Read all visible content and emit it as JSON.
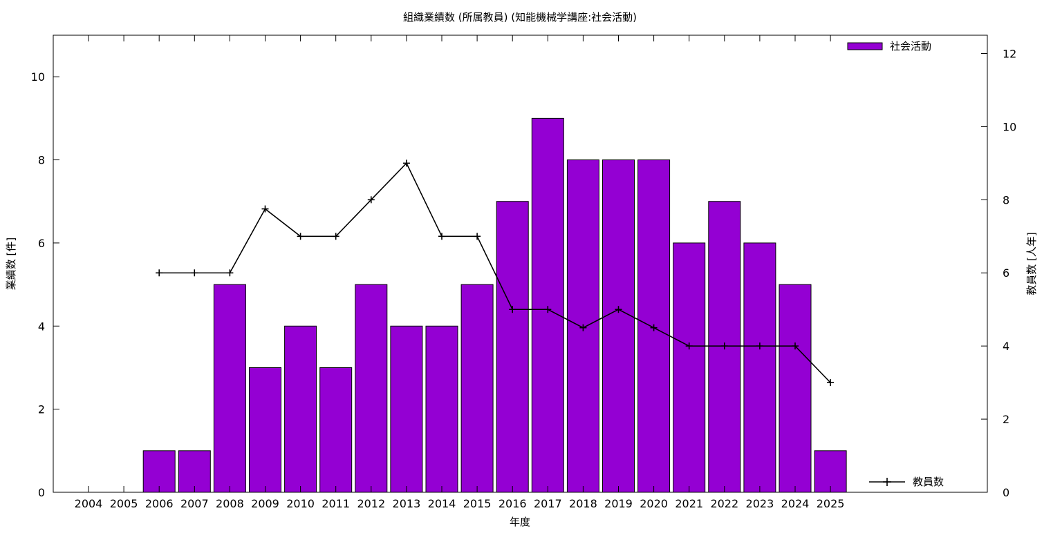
{
  "chart_data": {
    "type": "bar",
    "title": "組織業績数 (所属教員) (知能機械学講座:社会活動)",
    "xlabel": "年度",
    "ylabel": "業績数 [件]",
    "y2label": "教員数 [人年]",
    "categories": [
      "2004",
      "2005",
      "2006",
      "2007",
      "2008",
      "2009",
      "2010",
      "2011",
      "2012",
      "2013",
      "2014",
      "2015",
      "2016",
      "2017",
      "2018",
      "2019",
      "2020",
      "2021",
      "2022",
      "2023",
      "2024",
      "2025"
    ],
    "ylim": [
      0,
      11
    ],
    "y2lim": [
      0,
      12.5
    ],
    "yticks": [
      0,
      2,
      4,
      6,
      8,
      10
    ],
    "y2ticks": [
      0,
      2,
      4,
      6,
      8,
      10,
      12
    ],
    "grid": false,
    "legend_position": "top-right",
    "series": [
      {
        "name": "社会活動",
        "type": "bar",
        "axis": "left",
        "color": "#9400d3",
        "values": [
          0,
          0,
          1,
          1,
          5,
          3,
          4,
          3,
          5,
          4,
          4,
          5,
          7,
          9,
          8,
          8,
          8,
          6,
          7,
          6,
          5,
          1
        ]
      },
      {
        "name": "教員数",
        "type": "line",
        "axis": "right",
        "color": "#000000",
        "values": [
          null,
          null,
          6,
          6,
          6,
          7.75,
          7,
          7,
          8,
          9,
          7,
          7,
          5,
          5,
          4.5,
          5,
          4.5,
          4,
          4,
          4,
          4,
          3
        ]
      }
    ]
  }
}
